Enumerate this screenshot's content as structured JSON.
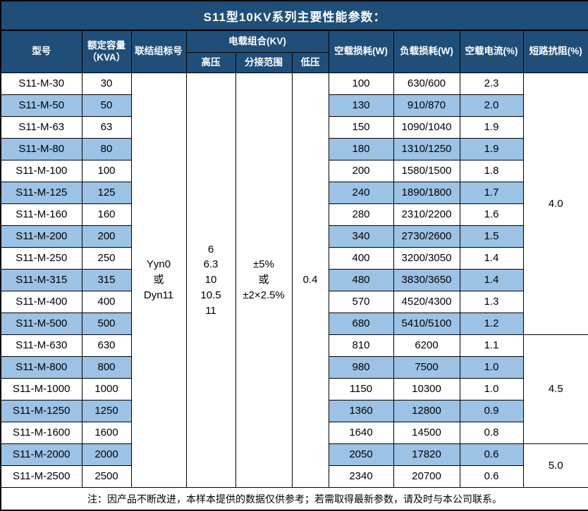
{
  "title": "S11型10KV系列主要性能参数：",
  "colors": {
    "header_bg": "#1F4E79",
    "stripe_blue": "#9CC2E5",
    "border": "#000000",
    "header_text": "#FFFFFF",
    "body_text": "#000000"
  },
  "header": {
    "model": "型号",
    "capacity": [
      "额定容量",
      "（KVA）"
    ],
    "vector_group": "联结组标号",
    "voltage_combo": "电载组合(KV)",
    "hv": "高压",
    "tap_range": "分接范围",
    "lv": "低压",
    "no_load_loss": "空载损耗(W)",
    "load_loss": "负载损耗(W)",
    "no_load_current": "空载电流(%)",
    "short_circuit_impedance": "短路抗阻(%)"
  },
  "merged": {
    "vector_group": [
      "Yyn0",
      "或",
      "Dyn11"
    ],
    "hv": [
      "6",
      "6.3",
      "10",
      "10.5",
      "11"
    ],
    "tap_range": [
      "±5%",
      "或",
      "±2×2.5%"
    ],
    "lv": "0.4"
  },
  "impedance_groups": [
    {
      "value": "4.0",
      "start": 0,
      "span": 12
    },
    {
      "value": "4.5",
      "start": 12,
      "span": 5
    },
    {
      "value": "5.0",
      "start": 17,
      "span": 2
    }
  ],
  "rows": [
    {
      "model": "S11-M-30",
      "capacity": "30",
      "no_load_loss": "100",
      "load_loss": "630/600",
      "no_load_current": "2.3"
    },
    {
      "model": "S11-M-50",
      "capacity": "50",
      "no_load_loss": "130",
      "load_loss": "910/870",
      "no_load_current": "2.0"
    },
    {
      "model": "S11-M-63",
      "capacity": "63",
      "no_load_loss": "150",
      "load_loss": "1090/1040",
      "no_load_current": "1.9"
    },
    {
      "model": "S11-M-80",
      "capacity": "80",
      "no_load_loss": "180",
      "load_loss": "1310/1250",
      "no_load_current": "1.9"
    },
    {
      "model": "S11-M-100",
      "capacity": "100",
      "no_load_loss": "200",
      "load_loss": "1580/1500",
      "no_load_current": "1.8"
    },
    {
      "model": "S11-M-125",
      "capacity": "125",
      "no_load_loss": "240",
      "load_loss": "1890/1800",
      "no_load_current": "1.7"
    },
    {
      "model": "S11-M-160",
      "capacity": "160",
      "no_load_loss": "280",
      "load_loss": "2310/2200",
      "no_load_current": "1.6"
    },
    {
      "model": "S11-M-200",
      "capacity": "200",
      "no_load_loss": "340",
      "load_loss": "2730/2600",
      "no_load_current": "1.5"
    },
    {
      "model": "S11-M-250",
      "capacity": "250",
      "no_load_loss": "400",
      "load_loss": "3200/3050",
      "no_load_current": "1.4"
    },
    {
      "model": "S11-M-315",
      "capacity": "315",
      "no_load_loss": "480",
      "load_loss": "3830/3650",
      "no_load_current": "1.4"
    },
    {
      "model": "S11-M-400",
      "capacity": "400",
      "no_load_loss": "570",
      "load_loss": "4520/4300",
      "no_load_current": "1.3"
    },
    {
      "model": "S11-M-500",
      "capacity": "500",
      "no_load_loss": "680",
      "load_loss": "5410/5100",
      "no_load_current": "1.2"
    },
    {
      "model": "S11-M-630",
      "capacity": "630",
      "no_load_loss": "810",
      "load_loss": "6200",
      "no_load_current": "1.1"
    },
    {
      "model": "S11-M-800",
      "capacity": "800",
      "no_load_loss": "980",
      "load_loss": "7500",
      "no_load_current": "1.0"
    },
    {
      "model": "S11-M-1000",
      "capacity": "1000",
      "no_load_loss": "1150",
      "load_loss": "10300",
      "no_load_current": "1.0"
    },
    {
      "model": "S11-M-1250",
      "capacity": "1250",
      "no_load_loss": "1360",
      "load_loss": "12800",
      "no_load_current": "0.9"
    },
    {
      "model": "S11-M-1600",
      "capacity": "1600",
      "no_load_loss": "1640",
      "load_loss": "14500",
      "no_load_current": "0.8"
    },
    {
      "model": "S11-M-2000",
      "capacity": "2000",
      "no_load_loss": "2050",
      "load_loss": "17820",
      "no_load_current": "0.6"
    },
    {
      "model": "S11-M-2500",
      "capacity": "2500",
      "no_load_loss": "2340",
      "load_loss": "20700",
      "no_load_current": "0.6"
    }
  ],
  "footer_note": "注：因产品不断改进，本样本提供的数据仅供参考；若需取得最新参数，请及时与本公司联系。"
}
